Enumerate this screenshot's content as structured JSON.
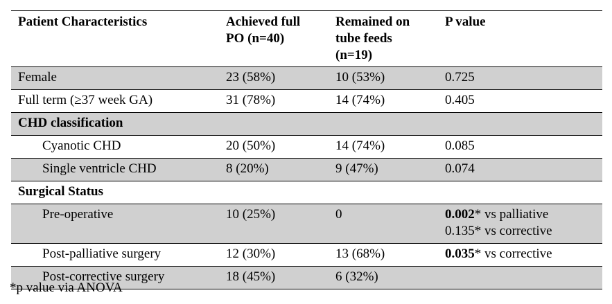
{
  "table": {
    "headers": [
      "Patient Characteristics",
      "Achieved full PO (n=40)",
      "Remained on tube feeds (n=19)",
      "P value"
    ],
    "header_lines": [
      [
        "Patient Characteristics"
      ],
      [
        "Achieved full",
        "PO (n=40)"
      ],
      [
        "Remained on",
        "tube feeds",
        "(n=19)"
      ],
      [
        "P value"
      ]
    ],
    "rows": [
      {
        "label": "Female",
        "po": "23 (58%)",
        "tube": "10 (53%)",
        "p": [
          {
            "bold": "",
            "rest": "0.725"
          }
        ]
      },
      {
        "label": "Full term (≥37 week GA)",
        "po": "31 (78%)",
        "tube": "14 (74%)",
        "p": [
          {
            "bold": "",
            "rest": "0.405"
          }
        ]
      },
      {
        "section": "CHD classification"
      },
      {
        "label": "Cyanotic CHD",
        "po": "20 (50%)",
        "tube": "14 (74%)",
        "p": [
          {
            "bold": "",
            "rest": "0.085"
          }
        ]
      },
      {
        "label": "Single ventricle CHD",
        "po": "8 (20%)",
        "tube": "9 (47%)",
        "p": [
          {
            "bold": "",
            "rest": "0.074"
          }
        ]
      },
      {
        "section": "Surgical Status"
      },
      {
        "label": "Pre-operative",
        "po": "10 (25%)",
        "tube": "0",
        "p": [
          {
            "bold": "0.002",
            "rest": "* vs palliative"
          },
          {
            "bold": "",
            "rest": "0.135* vs corrective"
          }
        ]
      },
      {
        "label": "Post-palliative surgery",
        "po": "12 (30%)",
        "tube": "13 (68%)",
        "p": [
          {
            "bold": "0.035",
            "rest": "* vs corrective"
          }
        ]
      },
      {
        "label": "Post-corrective surgery",
        "po": "18 (45%)",
        "tube": "6 (32%)",
        "p": []
      }
    ]
  },
  "footnote": "*p value via ANOVA"
}
